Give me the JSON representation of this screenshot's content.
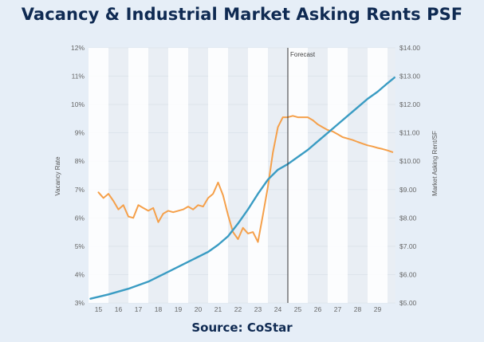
{
  "header": {
    "title": "Vacancy & Industrial Market Asking Rents PSF"
  },
  "footer": {
    "source": "Source: CoStar"
  },
  "colors": {
    "vacancy": "#f5a04a",
    "rent": "#3a9cc3",
    "band": "#ffffff",
    "plot_bg": "#e9eef4"
  },
  "chart_data": {
    "type": "line",
    "title": "Vacancy & Industrial Market Asking Rents PSF",
    "xlabel": "",
    "ylabel": "Vacancy Rate",
    "y2label": "Market Asking Rent/SF",
    "xlim": [
      2014.5,
      2029.9
    ],
    "ylim": [
      3,
      12
    ],
    "y2lim": [
      5,
      14
    ],
    "x_ticks": [
      15,
      16,
      17,
      18,
      19,
      20,
      21,
      22,
      23,
      24,
      25,
      26,
      27,
      28,
      29
    ],
    "y_ticks": [
      "3%",
      "4%",
      "5%",
      "6%",
      "7%",
      "8%",
      "9%",
      "10%",
      "11%",
      "12%"
    ],
    "y2_ticks": [
      "$5.00",
      "$6.00",
      "$7.00",
      "$8.00",
      "$9.00",
      "$10.00",
      "$11.00",
      "$12.00",
      "$13.00",
      "$14.00"
    ],
    "annotation": {
      "label": "Forecast",
      "x": 2024.5
    },
    "series": [
      {
        "name": "Vacancy Rate",
        "axis": "left",
        "x": [
          2015.0,
          2015.25,
          2015.5,
          2015.75,
          2016.0,
          2016.25,
          2016.5,
          2016.75,
          2017.0,
          2017.25,
          2017.5,
          2017.75,
          2018.0,
          2018.25,
          2018.5,
          2018.75,
          2019.0,
          2019.25,
          2019.5,
          2019.75,
          2020.0,
          2020.25,
          2020.5,
          2020.75,
          2021.0,
          2021.25,
          2021.5,
          2021.75,
          2022.0,
          2022.25,
          2022.5,
          2022.75,
          2023.0,
          2023.25,
          2023.5,
          2023.75,
          2024.0,
          2024.25,
          2024.5,
          2024.75,
          2025.0,
          2025.25,
          2025.5,
          2025.75,
          2026.0,
          2026.25,
          2026.5,
          2026.75,
          2027.0,
          2027.25,
          2027.5,
          2027.75,
          2028.0,
          2028.25,
          2028.5,
          2028.75,
          2029.0,
          2029.25,
          2029.5,
          2029.75
        ],
        "values": [
          6.9,
          6.7,
          6.85,
          6.6,
          6.3,
          6.45,
          6.05,
          6.0,
          6.45,
          6.35,
          6.25,
          6.35,
          5.85,
          6.15,
          6.25,
          6.2,
          6.25,
          6.3,
          6.4,
          6.3,
          6.45,
          6.4,
          6.7,
          6.85,
          7.25,
          6.8,
          6.1,
          5.5,
          5.25,
          5.65,
          5.45,
          5.5,
          5.15,
          6.1,
          7.1,
          8.3,
          9.2,
          9.55,
          9.55,
          9.6,
          9.55,
          9.55,
          9.55,
          9.45,
          9.3,
          9.2,
          9.1,
          9.05,
          8.95,
          8.85,
          8.8,
          8.75,
          8.68,
          8.62,
          8.56,
          8.52,
          8.47,
          8.43,
          8.38,
          8.32
        ]
      },
      {
        "name": "Market Asking Rent/SF",
        "axis": "right",
        "x": [
          2014.6,
          2015.5,
          2016.5,
          2017.5,
          2018.5,
          2019.5,
          2020.5,
          2021.0,
          2021.5,
          2022.0,
          2022.5,
          2023.0,
          2023.5,
          2024.0,
          2024.5,
          2025.0,
          2025.5,
          2026.0,
          2026.5,
          2027.0,
          2027.5,
          2028.0,
          2028.5,
          2029.0,
          2029.5,
          2029.85
        ],
        "values": [
          5.15,
          5.3,
          5.5,
          5.75,
          6.1,
          6.45,
          6.8,
          7.05,
          7.35,
          7.8,
          8.3,
          8.85,
          9.35,
          9.7,
          9.9,
          10.15,
          10.4,
          10.7,
          11.0,
          11.3,
          11.6,
          11.9,
          12.2,
          12.45,
          12.75,
          12.95
        ]
      }
    ]
  }
}
